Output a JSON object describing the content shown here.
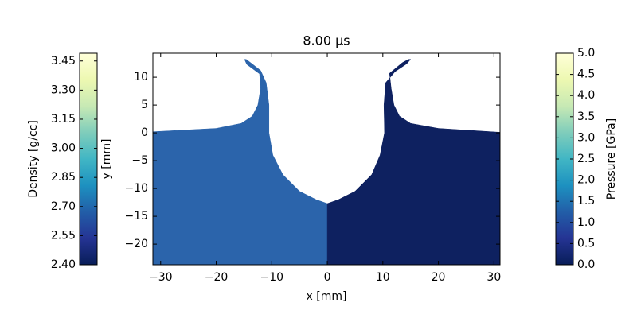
{
  "chart_data": {
    "type": "field",
    "title": "8.00 μs",
    "x_label": "x [mm]",
    "y_label": "y [mm]",
    "xlim": [
      -31.4,
      31.1
    ],
    "ylim": [
      -23.7,
      14.3
    ],
    "xticks": [
      {
        "value": -30,
        "label": "−30"
      },
      {
        "value": -20,
        "label": "−20"
      },
      {
        "value": -10,
        "label": "−10"
      },
      0,
      10,
      20,
      30
    ],
    "yticks": [
      10,
      5,
      0,
      {
        "value": -5,
        "label": "−5"
      },
      {
        "value": -10,
        "label": "−10"
      },
      {
        "value": -15,
        "label": "−15"
      },
      {
        "value": -20,
        "label": "−20"
      }
    ],
    "regions": [
      {
        "color": "#2b64ab",
        "x": [
          0,
          -2,
          -5,
          -8,
          -9.8,
          -10.5,
          -10.5,
          -11,
          -12,
          -13.8,
          -14.6,
          -14.9,
          -14.5,
          -12.2,
          -12,
          -12.5,
          -13.5,
          -15.5,
          -20,
          -31.4,
          -31.4,
          0
        ],
        "y": [
          -12.7,
          -12,
          -10.5,
          -7.5,
          -4,
          0,
          5,
          9,
          11.2,
          12.6,
          13.2,
          13.2,
          12.3,
          10.6,
          8,
          5,
          3,
          1.7,
          0.8,
          0.2,
          -23.7,
          -23.7
        ]
      },
      {
        "color": "#0e2160",
        "x": [
          0,
          31.1,
          31.1,
          20,
          15,
          13,
          12,
          11.5,
          11.2,
          13.5,
          14.6,
          15,
          14.3,
          12.2,
          10.5,
          10.2,
          10.3,
          9.5,
          8,
          5,
          2,
          0
        ],
        "y": [
          -23.7,
          -23.7,
          0.1,
          0.8,
          1.7,
          3,
          5,
          8,
          10.7,
          12.6,
          13.2,
          13.2,
          12.4,
          11,
          9,
          5,
          0,
          -4,
          -7.5,
          -10.5,
          -12,
          -12.7
        ]
      }
    ],
    "colormap": [
      "#081d58",
      "#253494",
      "#225ea8",
      "#1d91c0",
      "#41b6c4",
      "#7fcdbb",
      "#c7e9b4",
      "#edf8b1",
      "#ffffd9"
    ],
    "colorbars": [
      {
        "label": "Density [g/cc]",
        "side": "left",
        "lim": [
          2.4,
          3.49
        ],
        "ticks": [
          {
            "value": 2.4,
            "label": "2.40"
          },
          2.55,
          {
            "value": 2.7,
            "label": "2.70"
          },
          2.85,
          {
            "value": 3.0,
            "label": "3.00"
          },
          3.15,
          {
            "value": 3.3,
            "label": "3.30"
          },
          3.45
        ]
      },
      {
        "label": "Pressure [GPa]",
        "side": "right",
        "lim": [
          0,
          5
        ],
        "ticks": [
          {
            "value": 0,
            "label": "0.0"
          },
          0.5,
          {
            "value": 1,
            "label": "1.0"
          },
          1.5,
          {
            "value": 2,
            "label": "2.0"
          },
          2.5,
          {
            "value": 3,
            "label": "3.0"
          },
          3.5,
          {
            "value": 4,
            "label": "4.0"
          },
          4.5,
          {
            "value": 5,
            "label": "5.0"
          }
        ]
      }
    ]
  }
}
